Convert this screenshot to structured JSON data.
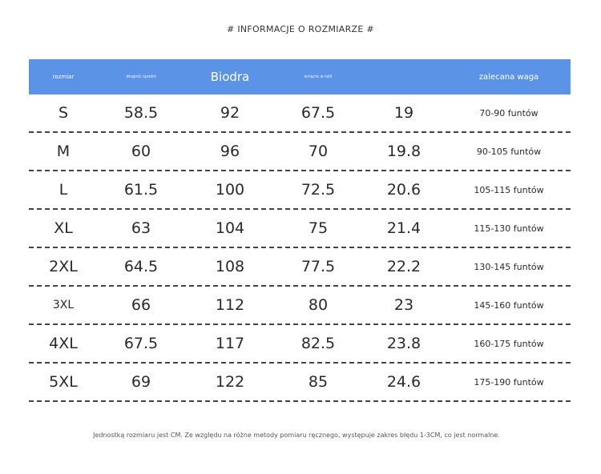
{
  "title": "# INFORMACJE O ROZMIARZE #",
  "headers": [
    "rozmiar",
    "długość spodni",
    "Biodra",
    "wcięcie w talii",
    "",
    "zalecana waga"
  ],
  "rows": [
    {
      "size": "S",
      "length": "58.5",
      "hips": "92",
      "waist": "67.5",
      "col5": "19",
      "weight": "70-90 funtów"
    },
    {
      "size": "M",
      "length": "60",
      "hips": "96",
      "waist": "70",
      "col5": "19.8",
      "weight": "90-105 funtów"
    },
    {
      "size": "L",
      "length": "61.5",
      "hips": "100",
      "waist": "72.5",
      "col5": "20.6",
      "weight": "105-115 funtów"
    },
    {
      "size": "XL",
      "length": "63",
      "hips": "104",
      "waist": "75",
      "col5": "21.4",
      "weight": "115-130 funtów"
    },
    {
      "size": "2XL",
      "length": "64.5",
      "hips": "108",
      "waist": "77.5",
      "col5": "22.2",
      "weight": "130-145 funtów"
    },
    {
      "size": "3XL",
      "length": "66",
      "hips": "112",
      "waist": "80",
      "col5": "23",
      "weight": "145-160 funtów"
    },
    {
      "size": "4XL",
      "length": "67.5",
      "hips": "117",
      "waist": "82.5",
      "col5": "23.8",
      "weight": "160-175 funtów"
    },
    {
      "size": "5XL",
      "length": "69",
      "hips": "122",
      "waist": "85",
      "col5": "24.6",
      "weight": "175-190 funtów"
    }
  ],
  "footer": "Jednostką rozmiaru jest CM. Ze względu na różne metody pomiaru ręcznego, występuje zakres błędu 1-3CM, co jest normalne.",
  "colors": {
    "header_bg": "#5b93e6"
  }
}
